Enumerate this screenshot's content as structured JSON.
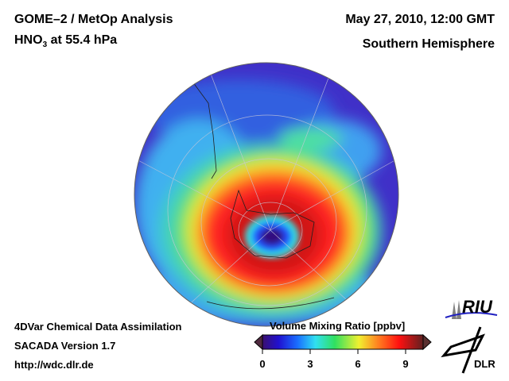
{
  "header": {
    "title": "GOME–2 / MetOp Analysis",
    "species": "HNO",
    "species_sub": "3",
    "level": " at 55.4 hPa",
    "datetime": "May 27, 2010, 12:00 GMT",
    "region": "Southern Hemisphere"
  },
  "footer": {
    "line1": "4DVar Chemical Data Assimilation",
    "line2": "SACADA Version 1.7",
    "url": "http://wdc.dlr.de"
  },
  "colorbar": {
    "title": "Volume Mixing Ratio [ppbv]",
    "range": [
      0,
      10
    ],
    "ticks": [
      "0",
      "3",
      "6",
      "9"
    ],
    "colors": [
      "#3a1070",
      "#2010d0",
      "#1a70ff",
      "#30e0f0",
      "#30e060",
      "#f0f030",
      "#ff8020",
      "#ff1010",
      "#c01010",
      "#602020"
    ]
  },
  "logos": {
    "riu": "RIU",
    "dlr": "DLR"
  }
}
